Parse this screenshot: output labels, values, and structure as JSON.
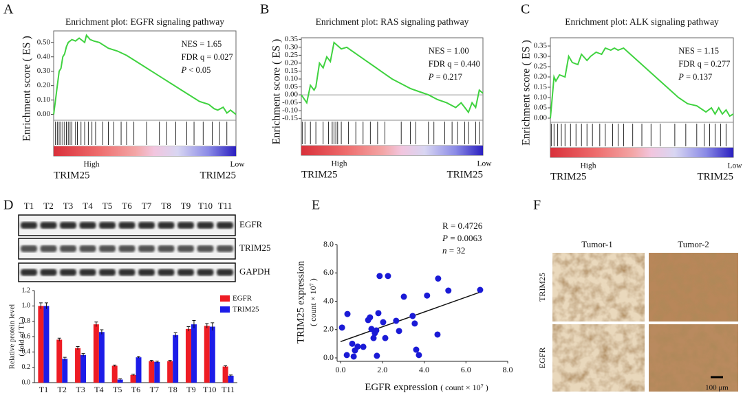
{
  "panels": [
    "A",
    "B",
    "C",
    "D",
    "E",
    "F"
  ],
  "chart_data": [
    {
      "type": "enrichment",
      "title": "Enrichment plot: EGFR signaling pathway",
      "y_label": "Enrichment score ( ES )",
      "color": "#3fd23f",
      "xlim": [
        0,
        100
      ],
      "ylim": [
        -0.04,
        0.58
      ],
      "yticks": [
        {
          "value": 0,
          "label": "0.00"
        },
        {
          "value": 0.1,
          "label": "0.10"
        },
        {
          "value": 0.2,
          "label": "0.20"
        },
        {
          "value": 0.3,
          "label": "0.30"
        },
        {
          "value": 0.4,
          "label": "0.40"
        },
        {
          "value": 0.5,
          "label": "0.50"
        }
      ],
      "x": [
        0,
        1,
        2,
        3,
        4,
        5,
        6,
        7,
        8,
        10,
        12,
        14,
        17,
        18,
        20,
        22,
        25,
        30,
        35,
        40,
        45,
        50,
        55,
        60,
        65,
        70,
        75,
        80,
        85,
        88,
        90,
        93,
        95,
        97,
        100
      ],
      "y": [
        0,
        0.1,
        0.2,
        0.3,
        0.32,
        0.4,
        0.42,
        0.47,
        0.5,
        0.52,
        0.51,
        0.53,
        0.5,
        0.55,
        0.52,
        0.51,
        0.5,
        0.46,
        0.44,
        0.41,
        0.37,
        0.33,
        0.29,
        0.25,
        0.21,
        0.17,
        0.13,
        0.09,
        0.07,
        0.04,
        0.03,
        0.05,
        0.01,
        0.03,
        0
      ],
      "hits": [
        1,
        2,
        3,
        4,
        5,
        6,
        7,
        8,
        9,
        10,
        12,
        13,
        15,
        17,
        19,
        21,
        23,
        27,
        30,
        33,
        37,
        40,
        44,
        51,
        58,
        62,
        67,
        73,
        77,
        82,
        87,
        91,
        95
      ],
      "stats": [
        {
          "symbol": "NES",
          "text": "= 1.65"
        },
        {
          "symbol": "FDR q",
          "text": "= 0.027"
        },
        {
          "symbol": "P",
          "text": "< 0.05",
          "italic": true
        }
      ],
      "phenotype_labels": [
        "High",
        "Low"
      ],
      "group_label": "TRIM25"
    },
    {
      "type": "enrichment",
      "title": "Enrichment plot: RAS signaling pathway",
      "y_label": "Enrichment score ( ES )",
      "color": "#3fd23f",
      "xlim": [
        0,
        100
      ],
      "ylim": [
        -0.16,
        0.36
      ],
      "zero_line": true,
      "yticks": [
        {
          "value": -0.15,
          "label": "-0.15"
        },
        {
          "value": -0.1,
          "label": "-0.10"
        },
        {
          "value": -0.05,
          "label": "-0.05"
        },
        {
          "value": 0,
          "label": "0.00"
        },
        {
          "value": 0.05,
          "label": "0.05"
        },
        {
          "value": 0.1,
          "label": "0.10"
        },
        {
          "value": 0.15,
          "label": "0.15"
        },
        {
          "value": 0.2,
          "label": "0.20"
        },
        {
          "value": 0.25,
          "label": "0.25"
        },
        {
          "value": 0.3,
          "label": "0.30"
        },
        {
          "value": 0.35,
          "label": "0.35"
        }
      ],
      "x": [
        0,
        3,
        5,
        7,
        8,
        10,
        12,
        14,
        16,
        18,
        20,
        22,
        25,
        30,
        35,
        40,
        45,
        50,
        55,
        60,
        65,
        70,
        75,
        80,
        85,
        88,
        90,
        92,
        94,
        96,
        98,
        100
      ],
      "y": [
        0,
        -0.05,
        0.06,
        0.03,
        0.05,
        0.2,
        0.17,
        0.24,
        0.21,
        0.33,
        0.31,
        0.29,
        0.3,
        0.26,
        0.22,
        0.18,
        0.14,
        0.1,
        0.07,
        0.04,
        0.02,
        0,
        -0.03,
        -0.05,
        -0.08,
        -0.05,
        -0.08,
        -0.11,
        -0.05,
        -0.08,
        0.03,
        0.01
      ],
      "hits": [
        0.5,
        2,
        5,
        8,
        12,
        15,
        17,
        18,
        19,
        20,
        22,
        26,
        30,
        34,
        38,
        42,
        46,
        55,
        60,
        63,
        70,
        73,
        79,
        83,
        86,
        90,
        92,
        96,
        98
      ],
      "stats": [
        {
          "symbol": "NES",
          "text": "= 1.00"
        },
        {
          "symbol": "FDR q",
          "text": "= 0.440"
        },
        {
          "symbol": "P",
          "text": "= 0.217",
          "italic": true
        }
      ],
      "phenotype_labels": [
        "High",
        "Low"
      ],
      "group_label": "TRIM25"
    },
    {
      "type": "enrichment",
      "title": "Enrichment plot: ALK signaling pathway",
      "y_label": "Enrichment score ( ES )",
      "color": "#3fd23f",
      "xlim": [
        0,
        100
      ],
      "ylim": [
        -0.02,
        0.39
      ],
      "yticks": [
        {
          "value": 0,
          "label": "0.00"
        },
        {
          "value": 0.05,
          "label": "0.05"
        },
        {
          "value": 0.1,
          "label": "0.10"
        },
        {
          "value": 0.15,
          "label": "0.15"
        },
        {
          "value": 0.2,
          "label": "0.20"
        },
        {
          "value": 0.25,
          "label": "0.25"
        },
        {
          "value": 0.3,
          "label": "0.30"
        },
        {
          "value": 0.35,
          "label": "0.35"
        }
      ],
      "x": [
        0,
        1,
        2,
        3,
        5,
        8,
        10,
        12,
        15,
        17,
        20,
        22,
        25,
        28,
        30,
        33,
        35,
        37,
        40,
        45,
        50,
        55,
        60,
        65,
        70,
        75,
        80,
        85,
        88,
        90,
        92,
        94,
        96,
        98,
        100
      ],
      "y": [
        0,
        0.1,
        0.2,
        0.18,
        0.21,
        0.2,
        0.3,
        0.27,
        0.26,
        0.31,
        0.28,
        0.3,
        0.32,
        0.31,
        0.34,
        0.33,
        0.34,
        0.33,
        0.34,
        0.3,
        0.26,
        0.22,
        0.18,
        0.14,
        0.1,
        0.07,
        0.06,
        0.03,
        0.05,
        0.02,
        0.05,
        0.02,
        0.04,
        0.01,
        0.02
      ],
      "hits": [
        0.5,
        2,
        4,
        6,
        8,
        11,
        14,
        17,
        20,
        23,
        27,
        30,
        34,
        37,
        40,
        45,
        50,
        55,
        60,
        68,
        74,
        80,
        84,
        87,
        90,
        93,
        96
      ],
      "stats": [
        {
          "symbol": "NES",
          "text": "= 1.15"
        },
        {
          "symbol": "FDR q",
          "text": "= 0.277"
        },
        {
          "symbol": "P",
          "text": "= 0.137",
          "italic": true
        }
      ],
      "phenotype_labels": [
        "High",
        "Low"
      ],
      "group_label": "TRIM25"
    },
    {
      "type": "bar",
      "y_label": [
        "Relative protein level",
        "( fold of  T1 )"
      ],
      "legend": "top-right",
      "categories": [
        "T1",
        "T2",
        "T3",
        "T4",
        "T5",
        "T6",
        "T7",
        "T8",
        "T9",
        "T10",
        "T11"
      ],
      "ylim": [
        0,
        1.2
      ],
      "yticks": [
        {
          "value": 0,
          "label": "0.0"
        },
        0.2,
        0.4,
        0.6,
        0.8,
        {
          "value": 1,
          "label": "1.0"
        },
        1.2
      ],
      "series": [
        {
          "name": "EGFR",
          "color": "#ee1c24",
          "values": [
            1.0,
            0.56,
            0.45,
            0.76,
            0.22,
            0.1,
            0.28,
            0.28,
            0.7,
            0.74,
            0.21
          ],
          "errors": [
            0.04,
            0.02,
            0.02,
            0.03,
            0.01,
            0.01,
            0.01,
            0.01,
            0.03,
            0.03,
            0.01
          ]
        },
        {
          "name": "TRIM25",
          "color": "#1c1ce8",
          "values": [
            1.0,
            0.31,
            0.36,
            0.66,
            0.04,
            0.33,
            0.27,
            0.62,
            0.76,
            0.73,
            0.09
          ],
          "errors": [
            0.04,
            0.02,
            0.02,
            0.03,
            0.01,
            0.01,
            0.01,
            0.03,
            0.05,
            0.05,
            0.01
          ]
        }
      ]
    },
    {
      "type": "scatter",
      "x_label": "EGFR expression",
      "x_unit": "( count × 10⁷ )",
      "y_label": "TRIM25 expression",
      "y_unit": "( count × 10⁷ )",
      "color": "#1a1ad6",
      "xlim": [
        0,
        8
      ],
      "ylim": [
        0,
        8
      ],
      "xticks": [
        {
          "value": 0,
          "label": "0.0"
        },
        {
          "value": 2,
          "label": "2.0"
        },
        {
          "value": 4,
          "label": "4.0"
        },
        {
          "value": 6,
          "label": "6.0"
        },
        {
          "value": 8,
          "label": "8.0"
        }
      ],
      "yticks": [
        {
          "value": 0,
          "label": "0.0"
        },
        {
          "value": 2,
          "label": "2.0"
        },
        {
          "value": 4,
          "label": "4.0"
        },
        {
          "value": 6,
          "label": "6.0"
        },
        {
          "value": 8,
          "label": "8.0"
        }
      ],
      "x": [
        0.07,
        0.33,
        0.3,
        0.56,
        0.63,
        0.69,
        0.82,
        1.09,
        1.32,
        1.41,
        1.48,
        1.58,
        1.64,
        1.71,
        1.74,
        1.81,
        1.87,
        2.27,
        2.04,
        2.14,
        2.66,
        2.8,
        3.03,
        3.45,
        3.55,
        3.62,
        3.75,
        4.14,
        4.64,
        4.67,
        5.16,
        6.68
      ],
      "y": [
        2.14,
        3.1,
        0.2,
        1.0,
        0.1,
        0.53,
        0.8,
        0.78,
        2.67,
        2.86,
        2.04,
        1.4,
        1.75,
        1.94,
        0.15,
        3.16,
        5.78,
        5.78,
        2.52,
        1.4,
        2.62,
        1.9,
        4.32,
        2.96,
        2.43,
        0.58,
        0.2,
        4.4,
        1.65,
        5.6,
        4.75,
        4.8
      ],
      "trend": {
        "x": [
          0,
          6.7
        ],
        "y": [
          1.15,
          4.65
        ]
      },
      "stats": [
        {
          "symbol": "R",
          "text": "= 0.4726"
        },
        {
          "symbol": "P",
          "text": "= 0.0063",
          "italic": true
        },
        {
          "symbol": "n",
          "text": "= 32",
          "italic": true
        }
      ]
    }
  ],
  "blot": {
    "lanes": [
      "T1",
      "T2",
      "T3",
      "T4",
      "T5",
      "T6",
      "T7",
      "T8",
      "T9",
      "T10",
      "T11"
    ],
    "rows": [
      "EGFR",
      "TRIM25",
      "GAPDH"
    ]
  },
  "ihc": {
    "columns": [
      "Tumor-1",
      "Tumor-2"
    ],
    "rows": [
      "TRIM25",
      "EGFR"
    ],
    "scale_bar": "100 μm"
  }
}
